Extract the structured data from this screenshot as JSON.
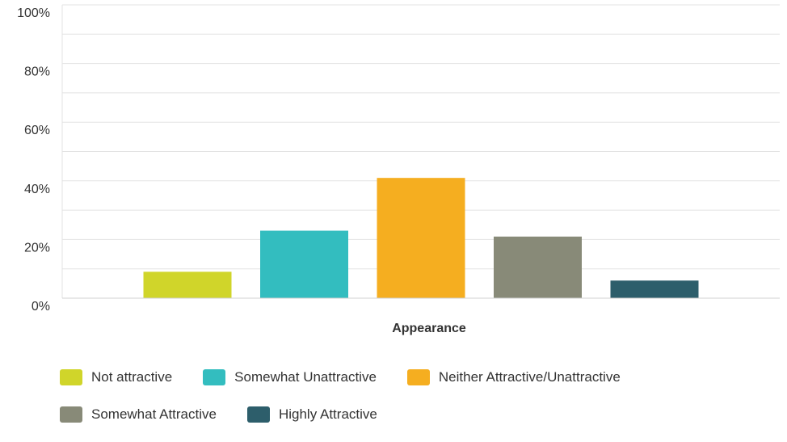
{
  "chart_data": {
    "type": "bar",
    "xlabel": "Appearance",
    "ylabel": "",
    "ylim": [
      0,
      100
    ],
    "ytick_labels": [
      "0%",
      "20%",
      "40%",
      "60%",
      "80%",
      "100%"
    ],
    "ytick_values": [
      0,
      20,
      40,
      60,
      80,
      100
    ],
    "grid": true,
    "legend_position": "bottom",
    "series": [
      {
        "name": "Not attractive",
        "value": 9,
        "color": "#d0d52a"
      },
      {
        "name": "Somewhat Unattractive",
        "value": 23,
        "color": "#33bdbf"
      },
      {
        "name": "Neither Attractive/Unattractive",
        "value": 41,
        "color": "#f5ae20"
      },
      {
        "name": "Somewhat Attractive",
        "value": 21,
        "color": "#888a78"
      },
      {
        "name": "Highly Attractive",
        "value": 6,
        "color": "#2d5e6b"
      }
    ]
  }
}
